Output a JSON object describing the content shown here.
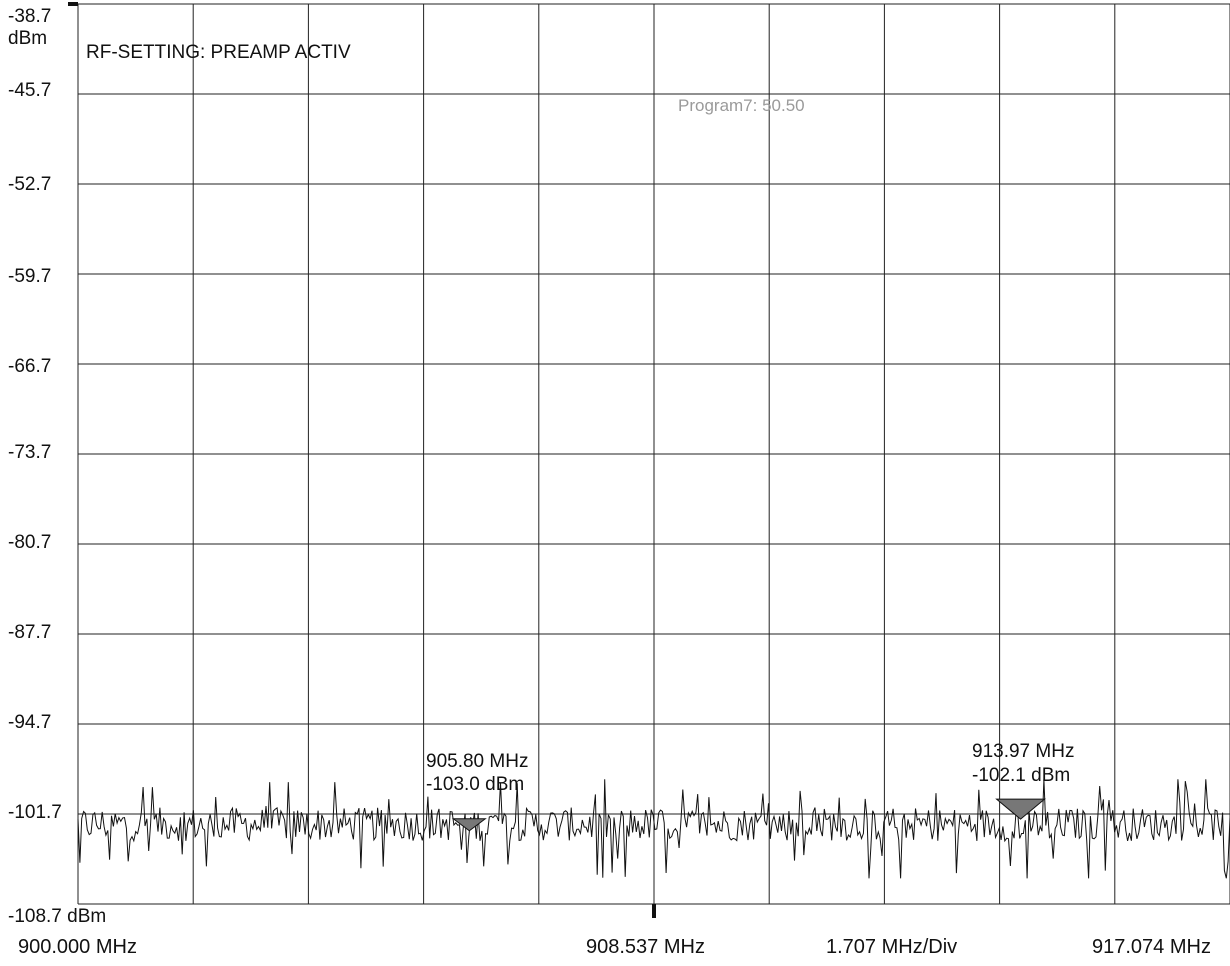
{
  "chart_data": {
    "type": "line",
    "title": "",
    "y_unit_label": "dBm",
    "y_bottom_label": "-108.7 dBm",
    "ylim": [
      -108.7,
      -38.7
    ],
    "yticks": [
      "-38.7",
      "-45.7",
      "-52.7",
      "-59.7",
      "-66.7",
      "-73.7",
      "-80.7",
      "-87.7",
      "-94.7",
      "-101.7"
    ],
    "xlim": [
      900.0,
      917.074
    ],
    "x_labels": {
      "start": "900.000 MHz",
      "center": "908.537 MHz",
      "div": "1.707 MHz/Div",
      "stop": "917.074 MHz"
    },
    "grid": true,
    "divisions_x": 10,
    "divisions_y": 10,
    "annotations": {
      "rf_setting": "RF-SETTING: PREAMP ACTIV",
      "program": "Program7: 50.50"
    },
    "markers": [
      {
        "freq_label": "905.80 MHz",
        "level_label": "-103.0 dBm",
        "x": 905.8,
        "y": -103.0
      },
      {
        "freq_label": "913.97 MHz",
        "level_label": "-102.1 dBm",
        "x": 913.97,
        "y": -102.1
      }
    ],
    "series": [
      {
        "noise_floor_mean": -102.5,
        "noise_floor_min": -106.7,
        "noise_floor_max": -99.0
      }
    ]
  }
}
